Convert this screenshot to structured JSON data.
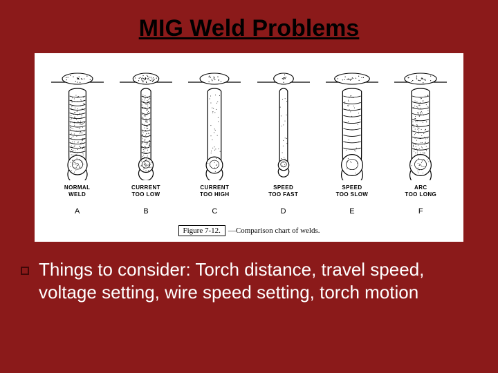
{
  "title": "MIG Weld Problems",
  "background_color": "#8b1a1a",
  "figure": {
    "background_color": "#ffffff",
    "caption_label": "Figure 7-12.",
    "caption_text": "—Comparison chart of welds.",
    "welds": [
      {
        "label": "NORMAL\nWELD",
        "letter": "A",
        "bead_w": 0.95,
        "bead_stipple": 1.0,
        "tip_r": 1.0,
        "line_count": 14,
        "top_fill": 0.55,
        "top_w": 1.0
      },
      {
        "label": "CURRENT\nTOO LOW",
        "letter": "B",
        "bead_w": 0.55,
        "bead_stipple": 1.0,
        "tip_r": 0.75,
        "line_count": 11,
        "top_fill": 0.95,
        "top_w": 0.85
      },
      {
        "label": "CURRENT\nTOO HIGH",
        "letter": "C",
        "bead_w": 0.75,
        "bead_stipple": 0.25,
        "tip_r": 0.85,
        "line_count": 0,
        "top_fill": 0.35,
        "top_w": 0.95
      },
      {
        "label": "SPEED\nTOO FAST",
        "letter": "D",
        "bead_w": 0.45,
        "bead_stipple": 0.15,
        "tip_r": 0.55,
        "line_count": 0,
        "top_fill": 0.25,
        "top_w": 0.65
      },
      {
        "label": "SPEED\nTOO SLOW",
        "letter": "E",
        "bead_w": 1.05,
        "bead_stipple": 0.25,
        "tip_r": 1.1,
        "line_count": 9,
        "top_fill": 0.45,
        "top_w": 1.15
      },
      {
        "label": "ARC\nTOO LONG",
        "letter": "F",
        "bead_w": 1.0,
        "bead_stipple": 0.9,
        "tip_r": 1.1,
        "line_count": 10,
        "top_fill": 0.55,
        "top_w": 1.05
      }
    ]
  },
  "bullet": {
    "text": "Things to consider: Torch distance, travel speed, voltage setting, wire speed setting, torch motion"
  }
}
